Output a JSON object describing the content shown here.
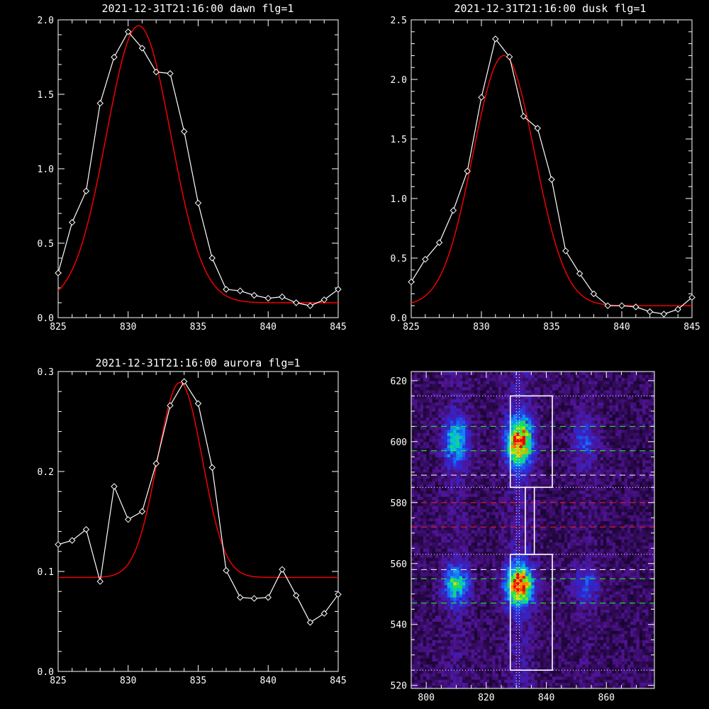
{
  "chart_data": [
    {
      "type": "line",
      "title": "2021-12-31T21:16:00 dawn flg=1",
      "xlim": [
        825,
        845
      ],
      "ylim": [
        0.0,
        2.0
      ],
      "xticks": [
        825,
        830,
        835,
        840,
        845
      ],
      "yticks": [
        "0.0",
        "0.5",
        "1.0",
        "1.5",
        "2.0"
      ],
      "ytick_values": [
        0.0,
        0.5,
        1.0,
        1.5,
        2.0
      ],
      "series": [
        {
          "kind": "data",
          "color": "#ffffff",
          "marker": "diamond",
          "x": [
            825,
            826,
            827,
            828,
            829,
            830,
            831,
            832,
            833,
            834,
            835,
            836,
            837,
            838,
            839,
            840,
            841,
            842,
            843,
            844,
            845
          ],
          "y": [
            0.3,
            0.64,
            0.85,
            1.44,
            1.75,
            1.92,
            1.81,
            1.65,
            1.64,
            1.25,
            0.77,
            0.4,
            0.19,
            0.18,
            0.15,
            0.13,
            0.14,
            0.1,
            0.08,
            0.12,
            0.19
          ]
        },
        {
          "kind": "fit",
          "color": "#ff0000",
          "gauss": {
            "amp": 1.86,
            "center": 830.75,
            "sigma": 2.3,
            "base": 0.1,
            "x0": 825,
            "x1": 845
          }
        }
      ]
    },
    {
      "type": "line",
      "title": "2021-12-31T21:16:00 dusk flg=1",
      "xlim": [
        825,
        845
      ],
      "ylim": [
        0.0,
        2.5
      ],
      "xticks": [
        825,
        830,
        835,
        840,
        845
      ],
      "yticks": [
        "0.0",
        "0.5",
        "1.0",
        "1.5",
        "2.0",
        "2.5"
      ],
      "ytick_values": [
        0.0,
        0.5,
        1.0,
        1.5,
        2.0,
        2.5
      ],
      "series": [
        {
          "kind": "data",
          "color": "#ffffff",
          "marker": "diamond",
          "x": [
            825,
            826,
            827,
            828,
            829,
            830,
            831,
            832,
            833,
            834,
            835,
            836,
            837,
            838,
            839,
            840,
            841,
            842,
            843,
            844,
            845
          ],
          "y": [
            0.3,
            0.49,
            0.63,
            0.9,
            1.23,
            1.85,
            2.34,
            2.19,
            1.69,
            1.59,
            1.16,
            0.56,
            0.37,
            0.2,
            0.1,
            0.1,
            0.09,
            0.05,
            0.03,
            0.07,
            0.17
          ]
        },
        {
          "kind": "fit",
          "color": "#ff0000",
          "gauss": {
            "amp": 2.1,
            "center": 831.6,
            "sigma": 2.2,
            "base": 0.1,
            "x0": 825,
            "x1": 845
          }
        }
      ]
    },
    {
      "type": "line",
      "title": "2021-12-31T21:16:00 aurora flg=1",
      "xlim": [
        825,
        845
      ],
      "ylim": [
        0.0,
        0.3
      ],
      "xticks": [
        825,
        830,
        835,
        840,
        845
      ],
      "yticks": [
        "0.0",
        "0.1",
        "0.2",
        "0.3"
      ],
      "ytick_values": [
        0.0,
        0.1,
        0.2,
        0.3
      ],
      "series": [
        {
          "kind": "data",
          "color": "#ffffff",
          "marker": "diamond",
          "x": [
            825,
            826,
            827,
            828,
            829,
            830,
            831,
            832,
            833,
            834,
            835,
            836,
            837,
            838,
            839,
            840,
            841,
            842,
            843,
            844,
            845
          ],
          "y": [
            0.127,
            0.131,
            0.142,
            0.09,
            0.185,
            0.152,
            0.16,
            0.208,
            0.266,
            0.29,
            0.268,
            0.204,
            0.101,
            0.074,
            0.073,
            0.074,
            0.102,
            0.076,
            0.049,
            0.058,
            0.077
          ]
        },
        {
          "kind": "fit",
          "color": "#ff0000",
          "gauss": {
            "amp": 0.195,
            "center": 833.7,
            "sigma": 1.6,
            "base": 0.094,
            "x0": 825,
            "x1": 845
          }
        }
      ]
    },
    {
      "type": "heatmap",
      "xlim": [
        795,
        876
      ],
      "ylim": [
        519,
        623
      ],
      "xticks": [
        800,
        820,
        840,
        860
      ],
      "yticks": [
        520,
        540,
        560,
        580,
        600,
        620
      ],
      "columns": [
        {
          "center": 810,
          "width": 3,
          "weight": 0.55
        },
        {
          "center": 831,
          "width": 3.2,
          "weight": 1.0
        },
        {
          "center": 853,
          "width": 3,
          "weight": 0.28
        }
      ],
      "bands": [
        {
          "center": 600,
          "height": 5.5,
          "weight": 0.9
        },
        {
          "center": 553,
          "height": 4.5,
          "weight": 1.0
        }
      ],
      "boxes": [
        {
          "x0": 828,
          "x1": 842,
          "y0": 585,
          "y1": 615
        },
        {
          "x0": 833,
          "x1": 836,
          "y0": 563,
          "y1": 585
        },
        {
          "x0": 828,
          "x1": 842,
          "y0": 525,
          "y1": 563
        }
      ],
      "hlines_white_dotted": [
        615,
        585,
        563,
        525
      ],
      "hlines_white_dashed": [
        589,
        558
      ],
      "hlines_green_dashed": [
        605,
        597,
        555,
        547
      ],
      "hlines_red_dashed": [
        580,
        572
      ],
      "vline_dotted": [
        830,
        831
      ]
    }
  ]
}
